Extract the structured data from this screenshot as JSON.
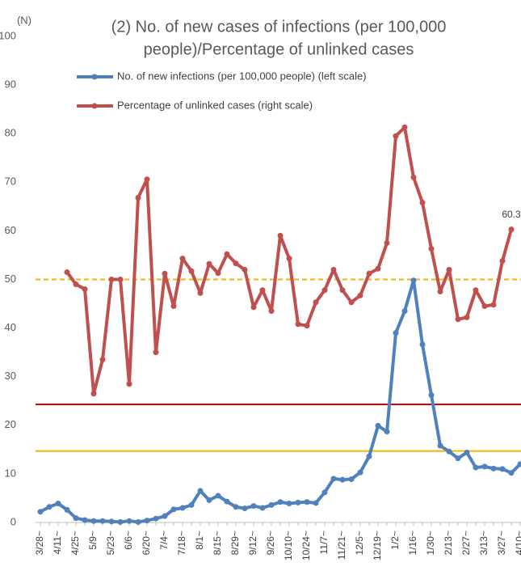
{
  "chart_data": {
    "type": "line",
    "title": [
      "(2) No. of new cases of infections (per 100,000",
      "people)/Percentage of unlinked cases"
    ],
    "y_unit": "(N)",
    "categories": [
      "3/28~",
      null,
      "4/11~",
      null,
      "4/25~",
      null,
      "5/9~",
      null,
      "5/23~",
      null,
      "6/6~",
      null,
      "6/20~",
      null,
      "7/4~",
      null,
      "7/18~",
      null,
      "8/1~",
      null,
      "8/15~",
      null,
      "8/29~",
      null,
      "9/12~",
      null,
      "9/26~",
      null,
      "10/10~",
      null,
      "10/24~",
      null,
      "11/7~",
      null,
      "11/21~",
      null,
      "12/5~",
      null,
      "12/19~",
      null,
      "1/2~",
      null,
      "1/16~",
      null,
      "1/30~",
      null,
      "2/13~",
      null,
      "2/27~",
      null,
      "3/13~",
      null,
      "3/27~",
      null,
      "4/10~"
    ],
    "series": [
      {
        "name": "No. of new infections (per 100,000 people) (left scale)",
        "color": "#4f81bd",
        "values": [
          2.2,
          3.2,
          3.9,
          2.6,
          0.9,
          0.5,
          0.3,
          0.3,
          0.2,
          0.1,
          0.3,
          0.1,
          0.4,
          0.8,
          1.3,
          2.7,
          3.0,
          3.6,
          6.5,
          4.6,
          5.5,
          4.3,
          3.2,
          2.9,
          3.4,
          3.0,
          3.6,
          4.2,
          3.9,
          4.1,
          4.2,
          4.0,
          6.2,
          9.0,
          8.8,
          8.9,
          10.3,
          13.6,
          19.9,
          18.7,
          39.0,
          43.5,
          49.8,
          36.6,
          26.2,
          15.8,
          14.6,
          13.2,
          14.4,
          11.3,
          11.5,
          11.1,
          11.0,
          10.2,
          12.0
        ]
      },
      {
        "name": "Percentage of unlinked cases (right scale)",
        "color": "#c0504d",
        "values": [
          null,
          null,
          null,
          51.5,
          49,
          48,
          26.5,
          33.5,
          50,
          50,
          28.5,
          66.8,
          70.6,
          35,
          51.2,
          44.5,
          54.3,
          51.7,
          47.2,
          53.2,
          51.3,
          55.2,
          53.3,
          52,
          44.3,
          47.8,
          43.5,
          59,
          54.3,
          40.8,
          40.5,
          45.3,
          47.8,
          52,
          47.8,
          45.3,
          46.7,
          51.2,
          52.2,
          57.5,
          79.5,
          81.3,
          71,
          65.8,
          56.3,
          47.5,
          52,
          41.8,
          42.2,
          47.8,
          44.5,
          44.8,
          53.8,
          60.3,
          null
        ]
      }
    ],
    "annotations": [
      {
        "series": 1,
        "index": 53
      }
    ],
    "reference_lines": [
      {
        "value": 50,
        "color": "#f4b400",
        "dashed": true
      },
      {
        "value": 24.3,
        "color": "#e00000",
        "dashed": false
      },
      {
        "value": 14.7,
        "color": "#f4b400",
        "dashed": false
      }
    ],
    "ylim": [
      0,
      100
    ],
    "yticks": [
      0,
      10,
      20,
      30,
      40,
      50,
      60,
      70,
      80,
      90,
      100
    ],
    "grid": false
  }
}
